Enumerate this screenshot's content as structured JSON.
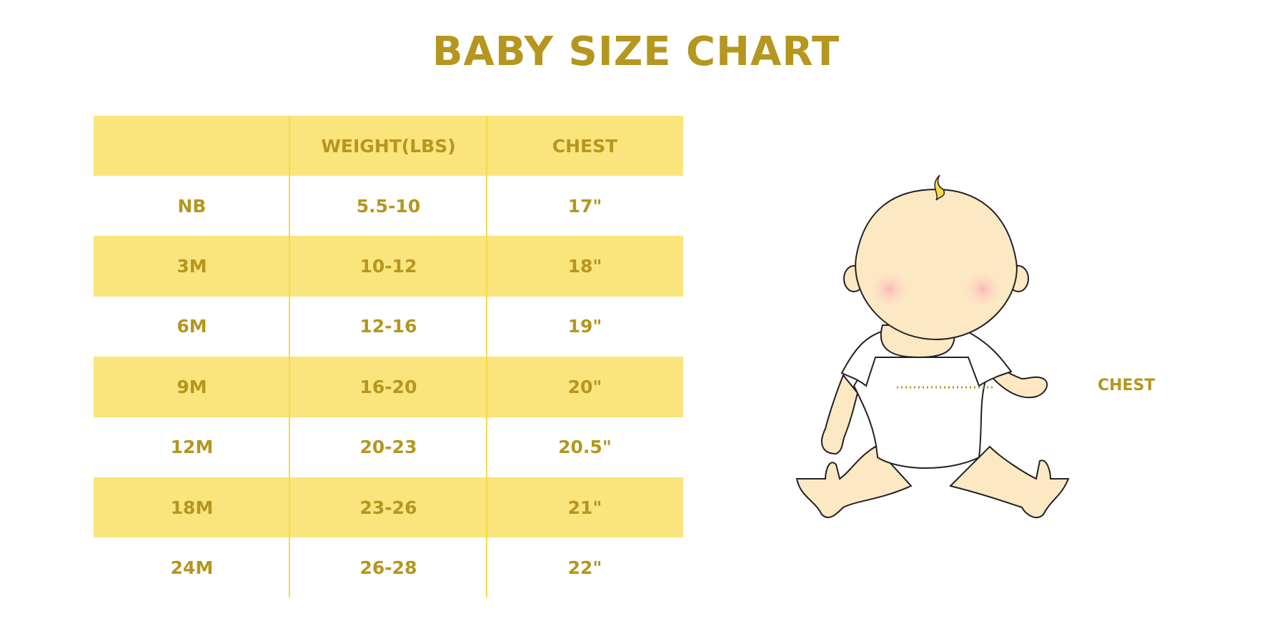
{
  "title": "BABY SIZE CHART",
  "table": {
    "headers": [
      "",
      "WEIGHT(LBS)",
      "CHEST"
    ],
    "rows": [
      [
        "NB",
        "5.5-10",
        "17\""
      ],
      [
        "3M",
        "10-12",
        "18\""
      ],
      [
        "6M",
        "12-16",
        "19\""
      ],
      [
        "9M",
        "16-20",
        "20\""
      ],
      [
        "12M",
        "20-23",
        "20.5\""
      ],
      [
        "18M",
        "23-26",
        "21\""
      ],
      [
        "24M",
        "26-28",
        "22\""
      ]
    ]
  },
  "illustration": {
    "icon": "baby-illustration",
    "chest_label": "CHEST"
  },
  "colors": {
    "text": "#b5961f",
    "band": "#fae47c",
    "divider": "#f6d94a",
    "skin": "#fde8c4"
  }
}
